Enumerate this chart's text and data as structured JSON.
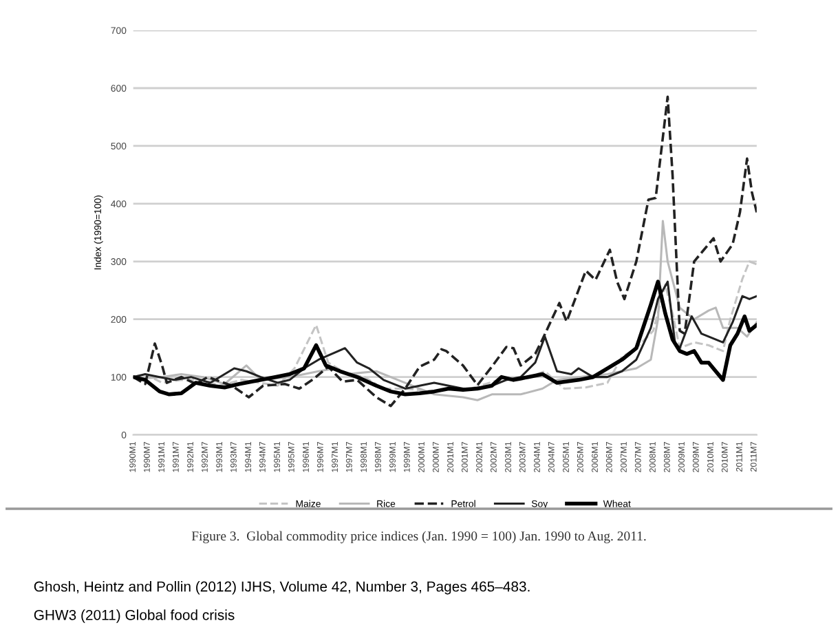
{
  "chart_data": {
    "type": "line",
    "ylabel": "Index (1990=100)",
    "ylim": [
      0,
      700
    ],
    "yticks": [
      0,
      100,
      200,
      300,
      400,
      500,
      600,
      700
    ],
    "xlim": [
      "1990-01",
      "2011-08"
    ],
    "xticks": [
      {
        "value": "1990-01",
        "label": "1990M1"
      },
      {
        "value": "1990-07",
        "label": "1990M7"
      },
      {
        "value": "1991-01",
        "label": "1991M1"
      },
      {
        "value": "1991-07",
        "label": "1991M7"
      },
      {
        "value": "1992-01",
        "label": "1992M1"
      },
      {
        "value": "1992-07",
        "label": "1992M7"
      },
      {
        "value": "1993-01",
        "label": "1993M1"
      },
      {
        "value": "1993-07",
        "label": "1993M7"
      },
      {
        "value": "1994-01",
        "label": "1994M1"
      },
      {
        "value": "1994-07",
        "label": "1994M7"
      },
      {
        "value": "1995-01",
        "label": "1995M1"
      },
      {
        "value": "1995-07",
        "label": "1995M7"
      },
      {
        "value": "1996-01",
        "label": "1996M1"
      },
      {
        "value": "1996-07",
        "label": "1996M7"
      },
      {
        "value": "1997-01",
        "label": "1997M1"
      },
      {
        "value": "1997-07",
        "label": "1997M7"
      },
      {
        "value": "1998-01",
        "label": "1998M1"
      },
      {
        "value": "1998-07",
        "label": "1998M7"
      },
      {
        "value": "1999-01",
        "label": "1999M1"
      },
      {
        "value": "1999-07",
        "label": "1999M7"
      },
      {
        "value": "2000-01",
        "label": "2000M1"
      },
      {
        "value": "2000-07",
        "label": "2000M7"
      },
      {
        "value": "2001-01",
        "label": "2001M1"
      },
      {
        "value": "2001-07",
        "label": "2001M7"
      },
      {
        "value": "2002-01",
        "label": "2002M1"
      },
      {
        "value": "2002-07",
        "label": "2002M7"
      },
      {
        "value": "2003-01",
        "label": "2003M1"
      },
      {
        "value": "2003-07",
        "label": "2003M7"
      },
      {
        "value": "2004-01",
        "label": "2004M1"
      },
      {
        "value": "2004-07",
        "label": "2004M7"
      },
      {
        "value": "2005-01",
        "label": "2005M1"
      },
      {
        "value": "2005-07",
        "label": "2005M7"
      },
      {
        "value": "2006-01",
        "label": "2006M1"
      },
      {
        "value": "2006-07",
        "label": "2006M7"
      },
      {
        "value": "2007-01",
        "label": "2007M1"
      },
      {
        "value": "2007-07",
        "label": "2007M7"
      },
      {
        "value": "2008-01",
        "label": "2008M1"
      },
      {
        "value": "2008-07",
        "label": "2008M7"
      },
      {
        "value": "2009-01",
        "label": "2009M1"
      },
      {
        "value": "2009-07",
        "label": "2009M7"
      },
      {
        "value": "2010-01",
        "label": "2010M1"
      },
      {
        "value": "2010-07",
        "label": "2010M7"
      },
      {
        "value": "2011-01",
        "label": "2011M1"
      },
      {
        "value": "2011-07",
        "label": "2011M7"
      }
    ],
    "grid": "y",
    "legend": "bottom",
    "marker": "none",
    "series": [
      {
        "name": "Maize",
        "color": "#c4c4c4",
        "line_style": "dashed",
        "x": [
          "1990-01",
          "1990-06",
          "1991-01",
          "1991-09",
          "1992-06",
          "1993-01",
          "1993-10",
          "1994-06",
          "1995-01",
          "1995-08",
          "1996-05",
          "1996-10",
          "1997-06",
          "1998-01",
          "1998-09",
          "1999-06",
          "2000-06",
          "2001-01",
          "2001-09",
          "2002-09",
          "2003-06",
          "2004-04",
          "2004-12",
          "2005-09",
          "2006-06",
          "2006-12",
          "2007-06",
          "2008-01",
          "2008-06",
          "2008-09",
          "2008-12",
          "2009-06",
          "2009-12",
          "2010-06",
          "2010-09",
          "2011-02",
          "2011-05",
          "2011-08"
        ],
        "values": [
          100,
          105,
          90,
          95,
          95,
          85,
          95,
          90,
          85,
          115,
          190,
          125,
          105,
          100,
          80,
          80,
          75,
          80,
          80,
          95,
          95,
          110,
          80,
          82,
          90,
          135,
          150,
          180,
          260,
          210,
          150,
          160,
          155,
          145,
          200,
          270,
          300,
          295
        ]
      },
      {
        "name": "Rice",
        "color": "#b8b8b8",
        "line_style": "solid",
        "x": [
          "1990-01",
          "1990-06",
          "1991-01",
          "1991-09",
          "1992-06",
          "1993-03",
          "1993-12",
          "1994-06",
          "1995-06",
          "1996-06",
          "1997-01",
          "1997-06",
          "1998-06",
          "1999-06",
          "2000-06",
          "2001-06",
          "2001-12",
          "2002-06",
          "2003-06",
          "2004-03",
          "2004-09",
          "2005-06",
          "2006-06",
          "2007-06",
          "2007-12",
          "2008-03",
          "2008-05",
          "2008-07",
          "2008-12",
          "2009-06",
          "2009-12",
          "2010-03",
          "2010-06",
          "2010-12",
          "2011-04",
          "2011-08"
        ],
        "values": [
          100,
          98,
          100,
          105,
          100,
          88,
          120,
          95,
          100,
          110,
          115,
          105,
          110,
          90,
          70,
          65,
          60,
          70,
          70,
          80,
          95,
          100,
          105,
          115,
          130,
          200,
          370,
          300,
          220,
          200,
          215,
          220,
          185,
          185,
          170,
          195
        ]
      },
      {
        "name": "Petrol",
        "color": "#222222",
        "line_style": "dashed",
        "x": [
          "1990-01",
          "1990-06",
          "1990-10",
          "1991-01",
          "1991-03",
          "1991-09",
          "1992-03",
          "1992-08",
          "1993-06",
          "1994-01",
          "1994-07",
          "1995-04",
          "1995-10",
          "1996-04",
          "1996-10",
          "1997-04",
          "1997-10",
          "1998-06",
          "1998-12",
          "1999-06",
          "1999-12",
          "2000-06",
          "2000-09",
          "2000-11",
          "2001-06",
          "2001-12",
          "2002-06",
          "2002-12",
          "2003-03",
          "2003-06",
          "2003-12",
          "2004-03",
          "2004-10",
          "2005-01",
          "2005-09",
          "2006-01",
          "2006-07",
          "2006-10",
          "2007-01",
          "2007-06",
          "2007-11",
          "2008-02",
          "2008-07",
          "2008-09",
          "2008-12",
          "2009-02",
          "2009-06",
          "2009-10",
          "2010-02",
          "2010-05",
          "2010-10",
          "2011-01",
          "2011-04",
          "2011-06",
          "2011-08"
        ],
        "values": [
          100,
          88,
          158,
          120,
          90,
          100,
          88,
          100,
          85,
          65,
          85,
          88,
          80,
          97,
          118,
          92,
          95,
          65,
          50,
          80,
          118,
          130,
          148,
          145,
          120,
          86,
          118,
          152,
          150,
          120,
          140,
          165,
          228,
          196,
          284,
          268,
          320,
          265,
          235,
          300,
          407,
          410,
          585,
          450,
          180,
          175,
          300,
          320,
          340,
          300,
          330,
          385,
          478,
          420,
          385
        ]
      },
      {
        "name": "Soy",
        "color": "#222222",
        "line_style": "solid",
        "x": [
          "1990-01",
          "1990-06",
          "1990-12",
          "1991-06",
          "1992-01",
          "1992-09",
          "1993-07",
          "1993-12",
          "1994-06",
          "1995-01",
          "1995-06",
          "1995-12",
          "1996-06",
          "1997-05",
          "1997-10",
          "1998-03",
          "1998-09",
          "1999-06",
          "1999-12",
          "2000-06",
          "2000-12",
          "2001-06",
          "2001-12",
          "2002-06",
          "2002-12",
          "2003-06",
          "2003-12",
          "2004-04",
          "2004-09",
          "2005-03",
          "2005-06",
          "2005-12",
          "2006-06",
          "2006-12",
          "2007-06",
          "2007-12",
          "2008-03",
          "2008-07",
          "2008-10",
          "2008-12",
          "2009-05",
          "2009-09",
          "2009-12",
          "2010-06",
          "2010-10",
          "2011-02",
          "2011-05",
          "2011-08"
        ],
        "values": [
          100,
          105,
          100,
          95,
          100,
          90,
          115,
          110,
          100,
          90,
          95,
          115,
          130,
          150,
          125,
          115,
          95,
          80,
          85,
          90,
          85,
          80,
          80,
          85,
          95,
          100,
          125,
          170,
          110,
          105,
          115,
          100,
          100,
          110,
          130,
          185,
          235,
          265,
          160,
          150,
          205,
          175,
          170,
          160,
          195,
          240,
          235,
          240
        ]
      },
      {
        "name": "Wheat",
        "color": "#000000",
        "line_style": "solid",
        "x": [
          "1990-01",
          "1990-06",
          "1990-12",
          "1991-04",
          "1991-09",
          "1992-03",
          "1992-09",
          "1993-03",
          "1993-09",
          "1994-06",
          "1994-12",
          "1995-06",
          "1995-12",
          "1996-05",
          "1996-09",
          "1997-03",
          "1997-10",
          "1998-06",
          "1998-12",
          "1999-06",
          "1999-12",
          "2000-06",
          "2000-12",
          "2001-06",
          "2001-12",
          "2002-06",
          "2002-10",
          "2003-03",
          "2003-09",
          "2004-03",
          "2004-09",
          "2005-06",
          "2005-12",
          "2006-06",
          "2006-12",
          "2007-06",
          "2007-12",
          "2008-03",
          "2008-06",
          "2008-09",
          "2008-12",
          "2009-03",
          "2009-06",
          "2009-09",
          "2009-12",
          "2010-03",
          "2010-06",
          "2010-09",
          "2010-12",
          "2011-03",
          "2011-05",
          "2011-08"
        ],
        "values": [
          100,
          95,
          75,
          70,
          72,
          90,
          85,
          82,
          88,
          95,
          100,
          105,
          115,
          155,
          120,
          110,
          100,
          85,
          75,
          70,
          72,
          75,
          80,
          78,
          80,
          85,
          100,
          95,
          100,
          105,
          90,
          95,
          100,
          115,
          130,
          150,
          225,
          265,
          210,
          165,
          145,
          140,
          145,
          125,
          125,
          110,
          95,
          155,
          175,
          205,
          180,
          190
        ]
      }
    ],
    "annotations": [
      "Figure 3.  Global commodity price indices (Jan. 1990 = 100) Jan. 1990 to Aug. 2011.",
      "Ghosh, Heintz and Pollin (2012) IJHS, Volume 42, Number 3, Pages 465–483.",
      "GHW3 (2011) Global food crisis"
    ]
  }
}
